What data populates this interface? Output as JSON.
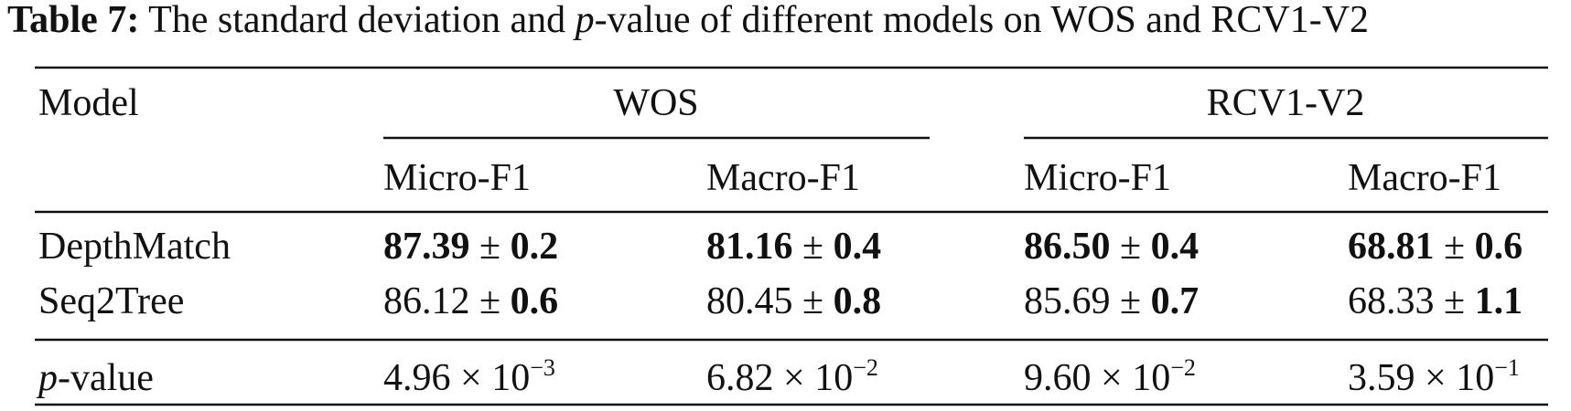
{
  "caption": {
    "label": "Table 7:",
    "text_before": "The standard deviation and",
    "italic": "p",
    "text_after": "-value of different models on WOS and RCV1-V2"
  },
  "table": {
    "model_header": "Model",
    "groups": [
      {
        "name": "WOS",
        "columns": [
          "Micro-F1",
          "Macro-F1"
        ]
      },
      {
        "name": "RCV1-V2",
        "columns": [
          "Micro-F1",
          "Macro-F1"
        ]
      }
    ],
    "rows": [
      {
        "model": "DepthMatch",
        "cells": [
          {
            "mean": "87.39",
            "sign": "±",
            "sd": "0.2",
            "bold_mean": true,
            "bold_sd": true
          },
          {
            "mean": "81.16",
            "sign": "±",
            "sd": "0.4",
            "bold_mean": true,
            "bold_sd": true
          },
          {
            "mean": "86.50",
            "sign": "±",
            "sd": "0.4",
            "bold_mean": true,
            "bold_sd": true
          },
          {
            "mean": "68.81",
            "sign": "±",
            "sd": "0.6",
            "bold_mean": true,
            "bold_sd": true
          }
        ]
      },
      {
        "model": "Seq2Tree",
        "cells": [
          {
            "mean": "86.12",
            "sign": "±",
            "sd": "0.6",
            "bold_mean": false,
            "bold_sd": true
          },
          {
            "mean": "80.45",
            "sign": "±",
            "sd": "0.8",
            "bold_mean": false,
            "bold_sd": true
          },
          {
            "mean": "85.69",
            "sign": "±",
            "sd": "0.7",
            "bold_mean": false,
            "bold_sd": true
          },
          {
            "mean": "68.33",
            "sign": "±",
            "sd": "1.1",
            "bold_mean": false,
            "bold_sd": true
          }
        ]
      }
    ],
    "pvalue_row": {
      "label_italic": "p",
      "label_rest": "-value",
      "cells": [
        {
          "mantissa": "4.96",
          "times": "×",
          "base": "10",
          "exponent": "−3"
        },
        {
          "mantissa": "6.82",
          "times": "×",
          "base": "10",
          "exponent": "−2"
        },
        {
          "mantissa": "9.60",
          "times": "×",
          "base": "10",
          "exponent": "−2"
        },
        {
          "mantissa": "3.59",
          "times": "×",
          "base": "10",
          "exponent": "−1"
        }
      ]
    }
  }
}
